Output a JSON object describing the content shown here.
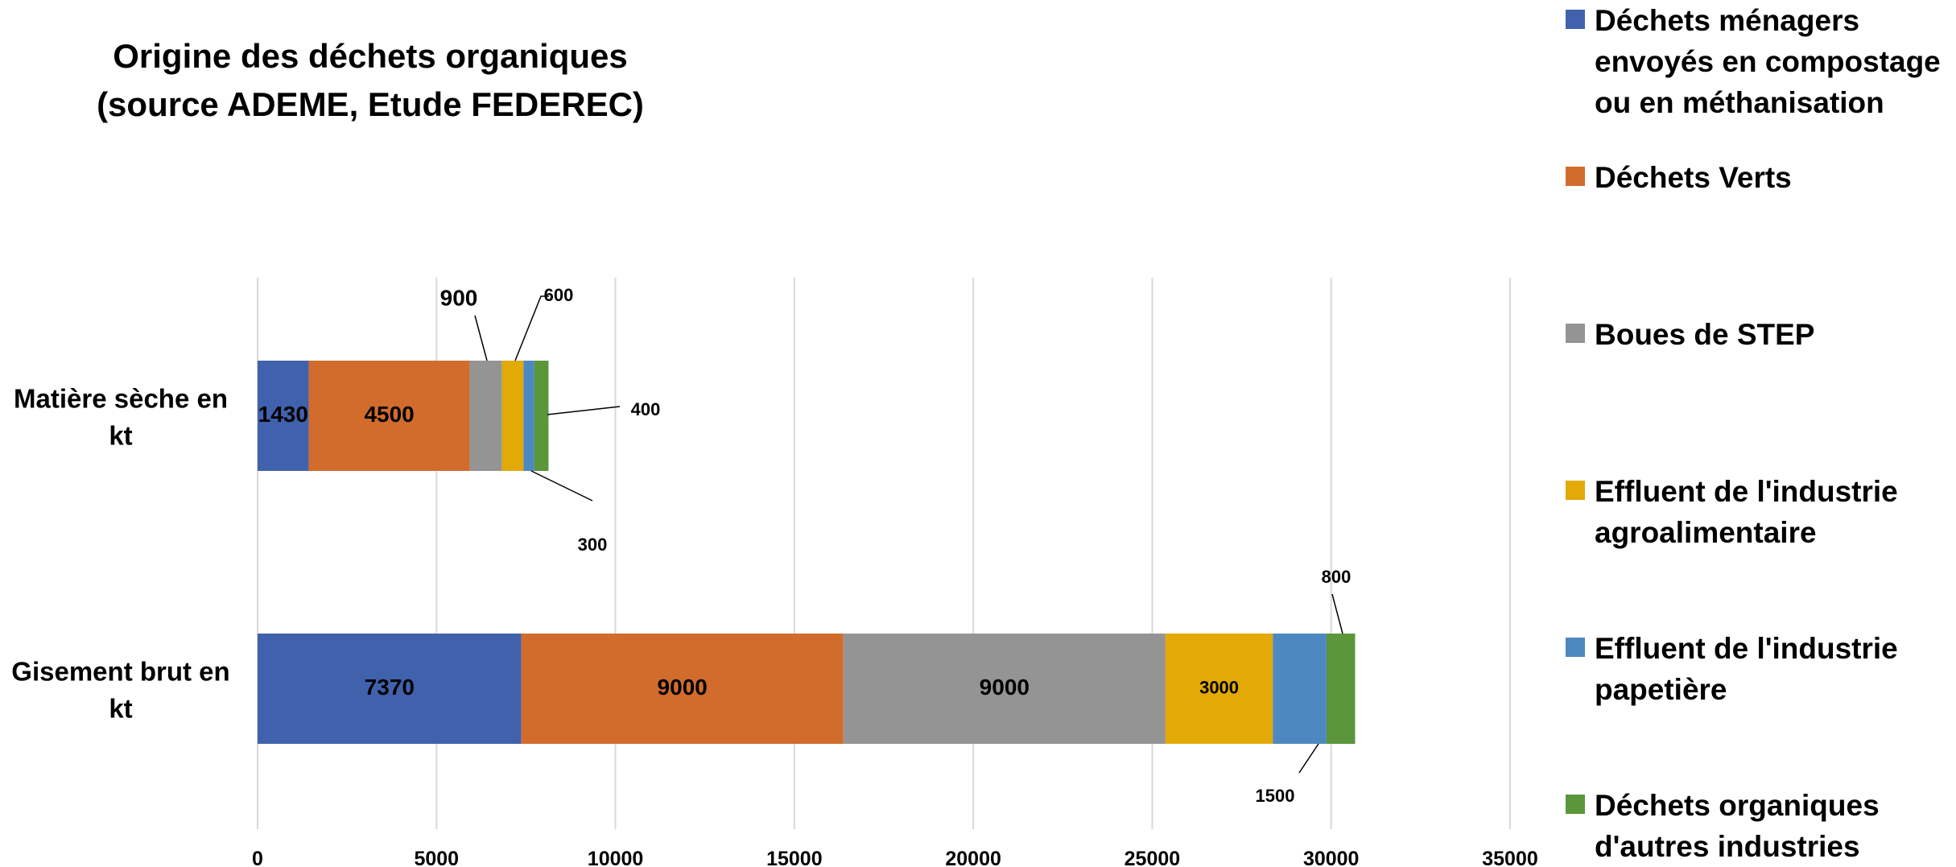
{
  "chart_data": {
    "type": "bar",
    "orientation": "horizontal",
    "stacked": true,
    "title": [
      "Origine des déchets organiques",
      "(source ADEME, Etude FEDEREC)"
    ],
    "categories": [
      "Matière sèche en kt",
      "Gisement brut en kt"
    ],
    "category_label_lines": [
      [
        "Matière sèche en",
        "kt"
      ],
      [
        "Gisement brut en",
        "kt"
      ]
    ],
    "series": [
      {
        "name": "Déchets ménagers envoyés en compostage ou en méthanisation",
        "color": "#4062AD",
        "values": [
          1430,
          7370
        ]
      },
      {
        "name": "Déchets Verts",
        "color": "#D26C2C",
        "values": [
          4500,
          9000
        ]
      },
      {
        "name": "Boues de STEP",
        "color": "#949494",
        "values": [
          900,
          9000
        ]
      },
      {
        "name": "Effluent de l'industrie agroalimentaire",
        "color": "#E2A907",
        "values": [
          600,
          3000
        ]
      },
      {
        "name": "Effluent de l'industrie papetière",
        "color": "#4D89C0",
        "values": [
          300,
          1500
        ]
      },
      {
        "name": "Déchets organiques d'autres industries",
        "color": "#5B963B",
        "values": [
          400,
          800
        ]
      }
    ],
    "data_labels": [
      [
        "1430",
        "4500",
        "900",
        "600",
        "300",
        "400"
      ],
      [
        "7370",
        "9000",
        "9000",
        "3000",
        "1500",
        "800"
      ]
    ],
    "xlim": [
      0,
      35000
    ],
    "xticks": [
      0,
      5000,
      10000,
      15000,
      20000,
      25000,
      30000,
      35000
    ],
    "xtick_labels": [
      "0",
      "5000",
      "10000",
      "15000",
      "20000",
      "25000",
      "30000",
      "35000"
    ],
    "grid": "vertical",
    "legend_position": "right"
  }
}
